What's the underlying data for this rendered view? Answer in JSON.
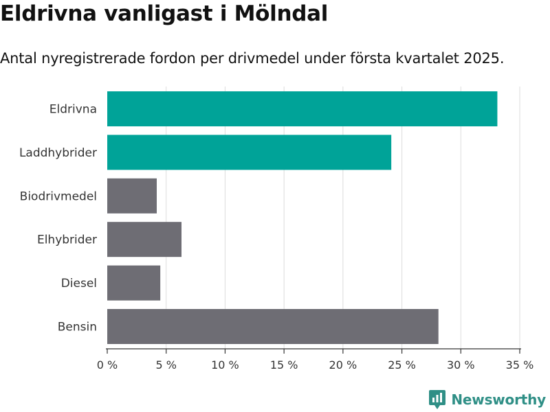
{
  "chart_data": {
    "type": "bar",
    "orientation": "horizontal",
    "title": "Eldrivna vanligast i Mölndal",
    "subtitle": "Antal nyregistrerade fordon per drivmedel under första kvartalet 2025.",
    "categories": [
      "Eldrivna",
      "Laddhybrider",
      "Biodrivmedel",
      "Elhybrider",
      "Diesel",
      "Bensin"
    ],
    "values": [
      33.1,
      24.1,
      4.2,
      6.3,
      4.5,
      28.1
    ],
    "highlighted": [
      true,
      true,
      false,
      false,
      false,
      false
    ],
    "colors": {
      "highlight": "#00a398",
      "default": "#6e6d74",
      "grid": "#dcdcdc"
    },
    "xlim": [
      0,
      35
    ],
    "xticks": [
      0,
      5,
      10,
      15,
      20,
      25,
      30,
      35
    ],
    "xtick_labels": [
      "0 %",
      "5 %",
      "10 %",
      "15 %",
      "20 %",
      "25 %",
      "30 %",
      "35 %"
    ],
    "xlabel": "",
    "ylabel": "",
    "grid": true,
    "legend": "none"
  },
  "branding": {
    "logo_text": "Newsworthy",
    "logo_icon": "newsworthy-chart-icon",
    "logo_color": "#2f8f86"
  }
}
